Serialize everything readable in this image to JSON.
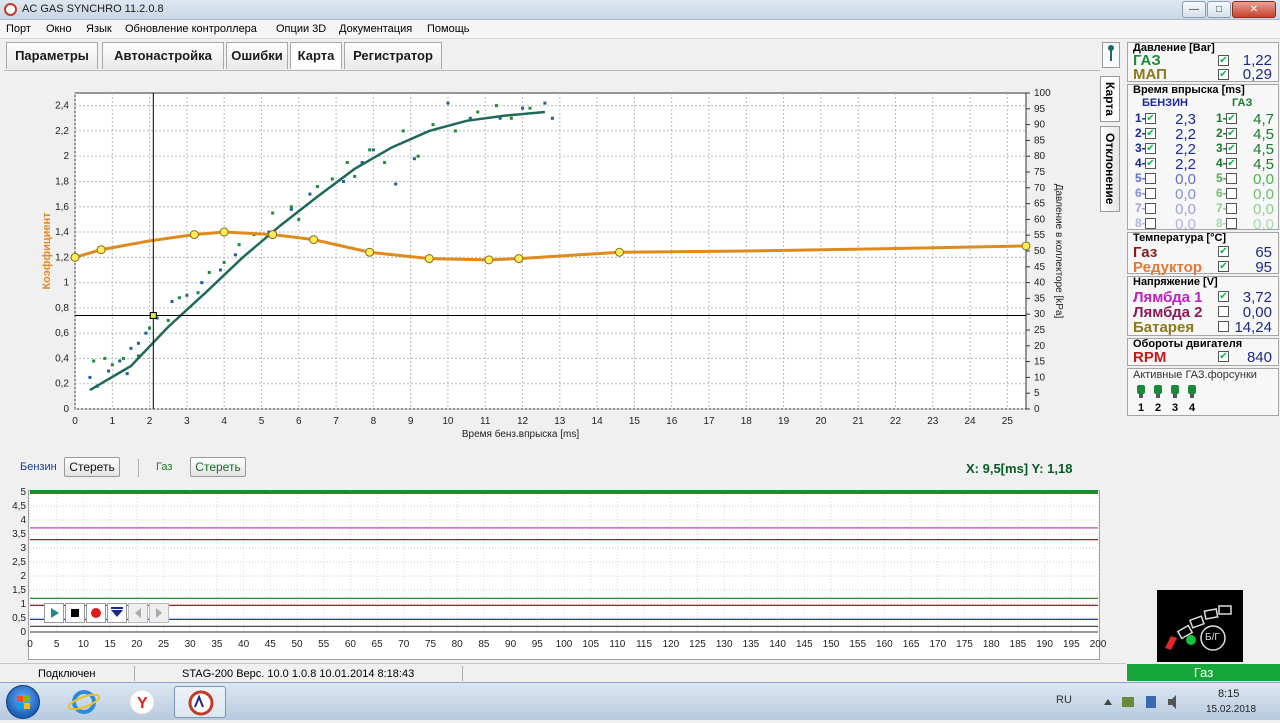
{
  "window": {
    "title": "AC GAS SYNCHRO  11.2.0.8",
    "buttons": {
      "minimize": "—",
      "maximize": "□",
      "close": "✕"
    }
  },
  "menu": [
    "Порт",
    "Окно",
    "Язык",
    "Обновление контроллера",
    "Опции 3D",
    "Документация",
    "Помощь"
  ],
  "tabs": [
    "Параметры",
    "Автонастройка",
    "Ошибки",
    "Карта",
    "Регистратор"
  ],
  "side_tabs": [
    "Карта",
    "Отклонение"
  ],
  "chart_data": {
    "type": "scatter",
    "xlabel": "Время бенз.впрыска [ms]",
    "ylabel_left": "Коэффициент",
    "ylabel_right": "Давление в коллекторе [kPa]",
    "x_ticks": [
      0,
      1,
      2,
      3,
      4,
      5,
      6,
      7,
      8,
      9,
      10,
      11,
      12,
      13,
      14,
      15,
      16,
      17,
      18,
      19,
      20,
      21,
      22,
      23,
      24,
      25
    ],
    "y_left_ticks": [
      "0",
      "0,2",
      "0,4",
      "0,6",
      "0,8",
      "1",
      "1,2",
      "1,4",
      "1,6",
      "1,8",
      "2",
      "2,2",
      "2,4"
    ],
    "y_right_ticks": [
      "0",
      "5",
      "10",
      "15",
      "20",
      "25",
      "30",
      "35",
      "40",
      "45",
      "50",
      "55",
      "60",
      "65",
      "70",
      "75",
      "80",
      "85",
      "90",
      "95",
      "100"
    ],
    "xlim": [
      0,
      25.5
    ],
    "ylim_left": [
      0,
      2.5
    ],
    "ylim_right": [
      0,
      100
    ],
    "grid": true,
    "series": [
      {
        "color": "#1f5fa0",
        "values_xy": [
          [
            0.4,
            0.25
          ],
          [
            0.6,
            0.18
          ],
          [
            0.9,
            0.3
          ],
          [
            1.2,
            0.38
          ],
          [
            1.4,
            0.28
          ],
          [
            1.5,
            0.48
          ],
          [
            1.7,
            0.52
          ],
          [
            1.9,
            0.6
          ],
          [
            2.2,
            0.72
          ],
          [
            2.6,
            0.85
          ],
          [
            3.0,
            0.9
          ],
          [
            3.4,
            1.0
          ],
          [
            3.9,
            1.1
          ],
          [
            4.3,
            1.22
          ],
          [
            5.2,
            1.4
          ],
          [
            5.8,
            1.58
          ],
          [
            6.3,
            1.7
          ],
          [
            7.2,
            1.8
          ],
          [
            7.7,
            1.95
          ],
          [
            8.0,
            2.05
          ],
          [
            8.6,
            1.78
          ],
          [
            9.1,
            1.98
          ],
          [
            10.0,
            2.42
          ],
          [
            10.6,
            2.3
          ],
          [
            11.4,
            2.3
          ],
          [
            12.0,
            2.38
          ],
          [
            12.6,
            2.42
          ],
          [
            12.8,
            2.3
          ]
        ]
      },
      {
        "color": "#1e8a3a",
        "values_xy": [
          [
            0.5,
            0.38
          ],
          [
            0.8,
            0.4
          ],
          [
            1.0,
            0.35
          ],
          [
            1.3,
            0.4
          ],
          [
            1.7,
            0.42
          ],
          [
            2.0,
            0.64
          ],
          [
            2.5,
            0.7
          ],
          [
            2.8,
            0.88
          ],
          [
            3.3,
            0.92
          ],
          [
            3.6,
            1.08
          ],
          [
            4.0,
            1.16
          ],
          [
            4.4,
            1.3
          ],
          [
            4.8,
            1.38
          ],
          [
            5.3,
            1.55
          ],
          [
            5.8,
            1.6
          ],
          [
            6.0,
            1.5
          ],
          [
            6.5,
            1.76
          ],
          [
            6.9,
            1.82
          ],
          [
            7.3,
            1.95
          ],
          [
            7.5,
            1.84
          ],
          [
            7.9,
            2.05
          ],
          [
            8.3,
            1.95
          ],
          [
            8.8,
            2.2
          ],
          [
            9.2,
            2.0
          ],
          [
            9.6,
            2.25
          ],
          [
            10.2,
            2.2
          ],
          [
            10.8,
            2.35
          ],
          [
            11.3,
            2.4
          ],
          [
            11.7,
            2.3
          ],
          [
            12.2,
            2.38
          ]
        ]
      },
      {
        "color": "#1e6a5a",
        "line_xy": [
          [
            0.4,
            0.15
          ],
          [
            1.5,
            0.34
          ],
          [
            2.5,
            0.65
          ],
          [
            3.5,
            0.92
          ],
          [
            4.5,
            1.2
          ],
          [
            5.5,
            1.45
          ],
          [
            6.5,
            1.68
          ],
          [
            7.5,
            1.9
          ],
          [
            8.5,
            2.07
          ],
          [
            9.5,
            2.2
          ],
          [
            10.5,
            2.28
          ],
          [
            11.5,
            2.32
          ],
          [
            12.6,
            2.35
          ]
        ]
      },
      {
        "color": "#e08a1e",
        "marker_xy": [
          [
            0.0,
            1.2
          ],
          [
            0.7,
            1.26
          ],
          [
            3.2,
            1.38
          ],
          [
            4.0,
            1.4
          ],
          [
            5.3,
            1.38
          ],
          [
            6.4,
            1.34
          ],
          [
            7.9,
            1.24
          ],
          [
            9.5,
            1.19
          ],
          [
            11.1,
            1.18
          ],
          [
            11.9,
            1.19
          ],
          [
            14.6,
            1.24
          ],
          [
            25.5,
            1.29
          ]
        ],
        "line_xy": [
          [
            0.0,
            1.2
          ],
          [
            0.7,
            1.26
          ],
          [
            2.0,
            1.33
          ],
          [
            3.2,
            1.38
          ],
          [
            4.0,
            1.4
          ],
          [
            5.3,
            1.38
          ],
          [
            6.4,
            1.34
          ],
          [
            7.9,
            1.24
          ],
          [
            9.5,
            1.19
          ],
          [
            11.1,
            1.18
          ],
          [
            11.9,
            1.19
          ],
          [
            14.6,
            1.24
          ],
          [
            18,
            1.25
          ],
          [
            22,
            1.27
          ],
          [
            25.5,
            1.29
          ]
        ]
      }
    ],
    "cursor": {
      "x": 2.1,
      "y": 0.74
    }
  },
  "chart_controls": {
    "petrol_label": "Бензин",
    "petrol_clear": "Стереть",
    "gas_label": "Газ",
    "gas_clear": "Стереть"
  },
  "coords": {
    "text": "X:   9,5[ms]  Y: 1,18"
  },
  "recorder": {
    "y_ticks": [
      "0",
      "0,5",
      "1",
      "1,5",
      "2",
      "2,5",
      "3",
      "3,5",
      "4",
      "4,5",
      "5"
    ],
    "x_ticks": [
      "0",
      "5",
      "10",
      "15",
      "20",
      "25",
      "30",
      "35",
      "40",
      "45",
      "50",
      "55",
      "60",
      "65",
      "70",
      "75",
      "80",
      "85",
      "90",
      "95",
      "100",
      "105",
      "110",
      "115",
      "120",
      "125",
      "130",
      "135",
      "140",
      "145",
      "150",
      "155",
      "160",
      "165",
      "170",
      "175",
      "180",
      "185",
      "190",
      "195",
      "200"
    ],
    "xlim": [
      0,
      200
    ],
    "ylim": [
      0,
      5
    ],
    "lines": [
      {
        "color": "#1c8c2c",
        "y": 5.0
      },
      {
        "color": "#c040c0",
        "y": 3.72
      },
      {
        "color": "#8a2a2a",
        "y": 3.3
      },
      {
        "color": "#2a8a2a",
        "y": 1.2
      },
      {
        "color": "#8a2a2a",
        "y": 0.95
      },
      {
        "color": "#2040a0",
        "y": 0.45
      },
      {
        "color": "#4a4a4a",
        "y": 0.2
      }
    ]
  },
  "right_panel": {
    "pressure": {
      "title": "Давление [Bar]",
      "rows": [
        {
          "label": "ГАЗ",
          "value": "1,22",
          "color": "#1f8a3a"
        },
        {
          "label": "МАП",
          "value": "0,29",
          "color": "#8a7a1a"
        }
      ]
    },
    "injection": {
      "title": "Время впрыска [ms]",
      "petrol_header": "БЕНЗИН",
      "gas_header": "ГАЗ",
      "rows": [
        {
          "n": "1",
          "petrol": "2,3",
          "gas": "4,7",
          "c_p": "#1a2a9a",
          "c_g": "#1a7a2a"
        },
        {
          "n": "2",
          "petrol": "2,2",
          "gas": "4,5",
          "c_p": "#1a2a9a",
          "c_g": "#1a7a2a"
        },
        {
          "n": "3",
          "petrol": "2,2",
          "gas": "4,5",
          "c_p": "#1a2a9a",
          "c_g": "#1a7a2a"
        },
        {
          "n": "4",
          "petrol": "2,2",
          "gas": "4,5",
          "c_p": "#1a2a9a",
          "c_g": "#1a7a2a"
        },
        {
          "n": "5",
          "petrol": "0,0",
          "gas": "0,0",
          "c_p": "#6070c8",
          "c_g": "#4ab04a"
        },
        {
          "n": "6",
          "petrol": "0,0",
          "gas": "0,0",
          "c_p": "#8090d0",
          "c_g": "#6ac06a"
        },
        {
          "n": "7",
          "petrol": "0,0",
          "gas": "0,0",
          "c_p": "#9aa0d8",
          "c_g": "#8ad08a"
        },
        {
          "n": "8",
          "petrol": "0,0",
          "gas": "0,0",
          "c_p": "#b0b4e0",
          "c_g": "#a8dca8"
        }
      ]
    },
    "temperature": {
      "title": "Температура  [°C]",
      "rows": [
        {
          "label": "Газ",
          "value": "65",
          "color": "#8a1a1a"
        },
        {
          "label": "Редуктор",
          "value": "95",
          "color": "#e07a3a"
        }
      ]
    },
    "voltage": {
      "title": "Напряжение [V]",
      "rows": [
        {
          "label": "Лямбда 1",
          "value": "3,72",
          "color": "#c020c0"
        },
        {
          "label": "Лямбда 2",
          "value": "0,00",
          "color": "#8a1a5a"
        },
        {
          "label": "Батарея",
          "value": "14,24",
          "color": "#8a7a1a"
        }
      ]
    },
    "rpm": {
      "title": "Обороты двигателя",
      "label": "RPM",
      "value": "840",
      "color": "#c01a1a"
    },
    "active_injectors": {
      "title": "Активные ГАЗ.форсунки",
      "labels": [
        "1",
        "2",
        "3",
        "4"
      ]
    },
    "switch_label": "Б/Г",
    "mode": "Газ"
  },
  "status": {
    "connection": "Подключен",
    "controller": "STAG-200   Верс. 10.0  1.0.8     10.01.2014 8:18:43"
  },
  "taskbar": {
    "lang": "RU",
    "time": "8:15",
    "date": "15.02.2018"
  }
}
